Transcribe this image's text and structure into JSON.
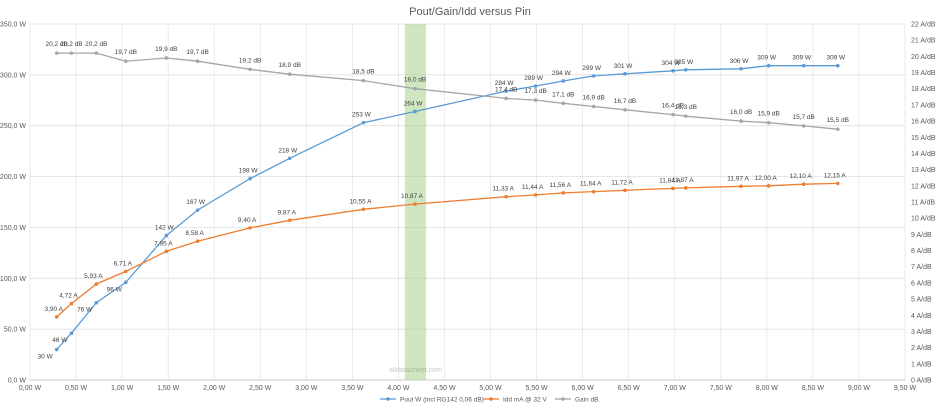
{
  "chart_data": {
    "type": "line",
    "title": "Pout/Gain/Idd versus Pin",
    "x_axis": {
      "range": [
        0,
        9.5
      ],
      "ticks": [
        0,
        0.5,
        1,
        1.5,
        2,
        2.5,
        3,
        3.5,
        4,
        4.5,
        5,
        5.5,
        6,
        6.5,
        7,
        7.5,
        8,
        8.5,
        9,
        9.5
      ],
      "tick_labels": [
        "0,00 W",
        "0,50 W",
        "1,00 W",
        "1,50 W",
        "2,00 W",
        "2,50 W",
        "3,00 W",
        "3,50 W",
        "4,00 W",
        "4,50 W",
        "5,00 W",
        "5,50 W",
        "6,00 W",
        "6,50 W",
        "7,00 W",
        "7,50 W",
        "8,00 W",
        "8,50 W",
        "9,00 W",
        "9,50 W"
      ]
    },
    "y_axis_left": {
      "range": [
        0,
        350
      ],
      "ticks": [
        0,
        50,
        100,
        150,
        200,
        250,
        300,
        350
      ],
      "tick_labels": [
        "0,0 W",
        "50,0 W",
        "100,0 W",
        "150,0 W",
        "200,0 W",
        "250,0 W",
        "300,0 W",
        "350,0 W"
      ]
    },
    "y_axis_right": {
      "range": [
        0,
        22
      ],
      "ticks": [
        0,
        1,
        2,
        3,
        4,
        5,
        6,
        7,
        8,
        9,
        10,
        11,
        12,
        13,
        14,
        15,
        16,
        17,
        18,
        19,
        20,
        21,
        22
      ],
      "tick_labels": [
        "0 A/dB",
        "1 A/dB",
        "2 A/dB",
        "3 A/dB",
        "4 A/dB",
        "5 A/dB",
        "6 A/dB",
        "7 A/dB",
        "8 A/dB",
        "9 A/dB",
        "10 A/dB",
        "11 A/dB",
        "12 A/dB",
        "13 A/dB",
        "14 A/dB",
        "15 A/dB",
        "16 A/dB",
        "17 A/dB",
        "18 A/dB",
        "19 A/dB",
        "20 A/dB",
        "21 A/dB",
        "22 A/dB"
      ]
    },
    "highlight_band": {
      "x_range": [
        4.07,
        4.3
      ],
      "color": "#a9d18e"
    },
    "watermark": "alldatasheet.com",
    "grid": true,
    "legend_position": "bottom",
    "series": [
      {
        "name": "Pout W (incl RG142 0,06 dB)",
        "axis": "left",
        "color": "#5b9bd5",
        "x": [
          0.29,
          0.45,
          0.72,
          1.04,
          1.48,
          1.82,
          2.39,
          2.82,
          3.62,
          4.18,
          5.17,
          5.49,
          5.79,
          6.12,
          6.46,
          6.98,
          7.12,
          7.72,
          8.02,
          8.4,
          8.77
        ],
        "y": [
          30,
          46,
          76,
          96,
          142,
          167,
          198,
          218,
          253,
          264,
          284,
          289,
          294,
          299,
          301,
          304,
          305,
          306,
          309,
          309,
          309
        ],
        "labels": [
          "30 W",
          "46 W",
          "76 W",
          "96 W",
          "142 W",
          "167 W",
          "198 W",
          "218 W",
          "253 W",
          "264 W",
          "284 W",
          "289 W",
          "294 W",
          "299 W",
          "301 W",
          "304 W",
          "305 W",
          "306 W",
          "309 W",
          "309 W",
          "309 W"
        ]
      },
      {
        "name": "Idd mA @ 32 V",
        "axis": "right",
        "color": "#ed7d31",
        "x": [
          0.29,
          0.45,
          0.72,
          1.04,
          1.48,
          1.82,
          2.39,
          2.82,
          3.62,
          4.18,
          5.17,
          5.49,
          5.79,
          6.12,
          6.46,
          6.98,
          7.12,
          7.72,
          8.02,
          8.4,
          8.77
        ],
        "y": [
          3.9,
          4.72,
          5.93,
          6.71,
          7.95,
          8.58,
          9.4,
          9.87,
          10.55,
          10.87,
          11.33,
          11.44,
          11.56,
          11.64,
          11.72,
          11.84,
          11.87,
          11.97,
          12.0,
          12.1,
          12.15
        ],
        "labels": [
          "3,90 A",
          "4,72 A",
          "5,93 A",
          "6,71 A",
          "7,95 A",
          "8,58 A",
          "9,40 A",
          "9,87 A",
          "10,55 A",
          "10,87 A",
          "11,33 A",
          "11,44 A",
          "11,56 A",
          "11,64 A",
          "11,72 A",
          "11,84 A",
          "11,87 A",
          "11,97 A",
          "12,00 A",
          "12,10 A",
          "12,15 A"
        ]
      },
      {
        "name": "Gain dB",
        "axis": "right",
        "color": "#a5a5a5",
        "x": [
          0.29,
          0.45,
          0.72,
          1.04,
          1.48,
          1.82,
          2.39,
          2.82,
          3.62,
          4.18,
          5.17,
          5.49,
          5.79,
          6.12,
          6.46,
          6.98,
          7.12,
          7.72,
          8.02,
          8.4,
          8.77
        ],
        "y": [
          20.2,
          20.2,
          20.2,
          19.7,
          19.9,
          19.7,
          19.2,
          18.9,
          18.5,
          18.0,
          17.4,
          17.3,
          17.1,
          16.9,
          16.7,
          16.4,
          16.3,
          16.0,
          15.9,
          15.7,
          15.5
        ],
        "labels": [
          "20,2 dB",
          "20,2 dB",
          "20,2 dB",
          "19,7 dB",
          "19,9 dB",
          "19,7 dB",
          "19,2 dB",
          "18,9 dB",
          "18,5 dB",
          "18,0 dB",
          "17,4 dB",
          "17,3 dB",
          "17,1 dB",
          "16,9 dB",
          "16,7 dB",
          "16,4 dB",
          "16,3 dB",
          "16,0 dB",
          "15,9 dB",
          "15,7 dB",
          "15,5 dB"
        ]
      }
    ]
  }
}
